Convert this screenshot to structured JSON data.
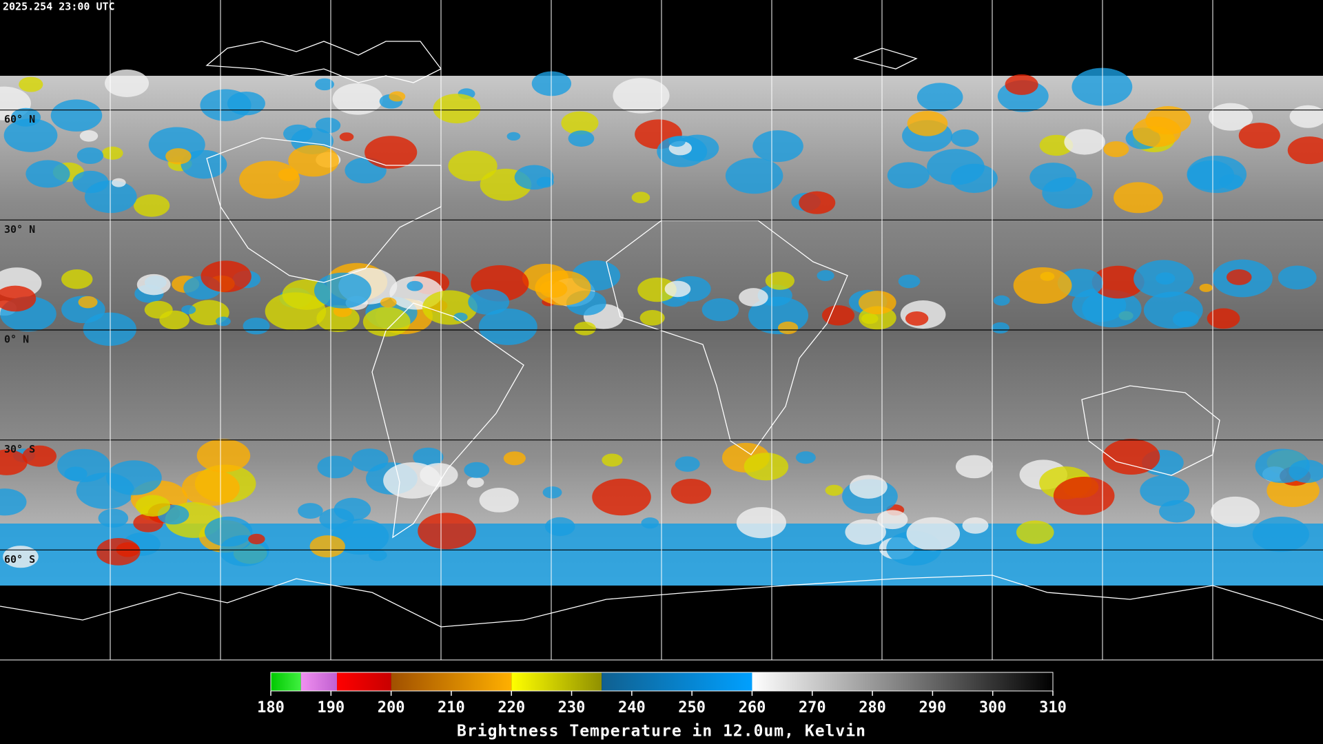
{
  "header": {
    "timestamp": "2025.254 23:00 UTC"
  },
  "map": {
    "projection": "equirectangular",
    "lat_range": [
      -90,
      90
    ],
    "lon_range": [
      -180,
      180
    ],
    "lat_lines": [
      60,
      30,
      0,
      -30,
      -60
    ],
    "lon_lines": [
      -150,
      -120,
      -90,
      -60,
      -30,
      0,
      30,
      60,
      90,
      120,
      150
    ],
    "lat_labels": [
      {
        "value": 60,
        "label": "60° N"
      },
      {
        "value": 30,
        "label": "30° N"
      },
      {
        "value": 0,
        "label": "0° N"
      },
      {
        "value": -30,
        "label": "30° S"
      },
      {
        "value": -60,
        "label": "60° S"
      }
    ]
  },
  "colorbar": {
    "range": [
      180,
      310
    ],
    "ticks": [
      180,
      190,
      200,
      210,
      220,
      230,
      240,
      250,
      260,
      270,
      280,
      290,
      300,
      310
    ],
    "segments": [
      {
        "from": 180,
        "to": 185,
        "colors": [
          "#00c800",
          "#40f040"
        ]
      },
      {
        "from": 185,
        "to": 191,
        "colors": [
          "#f090f0",
          "#c060d0"
        ]
      },
      {
        "from": 191,
        "to": 200,
        "colors": [
          "#ff0000",
          "#c80000"
        ]
      },
      {
        "from": 200,
        "to": 220,
        "colors": [
          "#a05000",
          "#ffb000"
        ]
      },
      {
        "from": 220,
        "to": 235,
        "colors": [
          "#ffff00",
          "#909000"
        ]
      },
      {
        "from": 235,
        "to": 260,
        "colors": [
          "#106090",
          "#00a0ff"
        ]
      },
      {
        "from": 260,
        "to": 310,
        "colors": [
          "#ffffff",
          "#000000"
        ]
      }
    ],
    "title": "Brightness Temperature in 12.0um, Kelvin"
  }
}
